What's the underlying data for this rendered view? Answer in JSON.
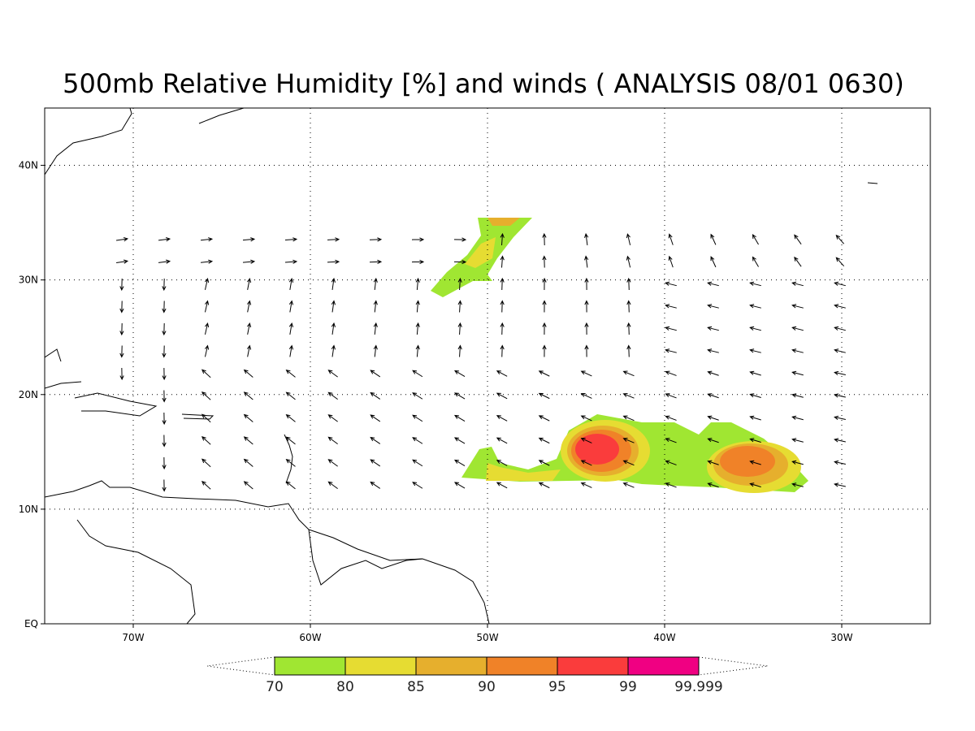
{
  "title": "500mb Relative Humidity [%] and winds ( ANALYSIS 08/01 0630)",
  "map": {
    "lon_range": [
      -75,
      -25
    ],
    "lat_range": [
      0,
      45
    ],
    "lon_ticks": [
      {
        "value": -70,
        "label": "70W"
      },
      {
        "value": -60,
        "label": "60W"
      },
      {
        "value": -50,
        "label": "50W"
      },
      {
        "value": -40,
        "label": "40W"
      },
      {
        "value": -30,
        "label": "30W"
      }
    ],
    "lat_ticks": [
      {
        "value": 0,
        "label": "EQ"
      },
      {
        "value": 10,
        "label": "10N"
      },
      {
        "value": 20,
        "label": "20N"
      },
      {
        "value": 30,
        "label": "30N"
      },
      {
        "value": 40,
        "label": "40N"
      }
    ]
  },
  "colorbar": {
    "levels": [
      70,
      80,
      85,
      90,
      95,
      99,
      99.999
    ],
    "colors": [
      "#a0e632",
      "#e6dc32",
      "#e6af2d",
      "#f08228",
      "#fa3c3c",
      "#f00082"
    ]
  }
}
